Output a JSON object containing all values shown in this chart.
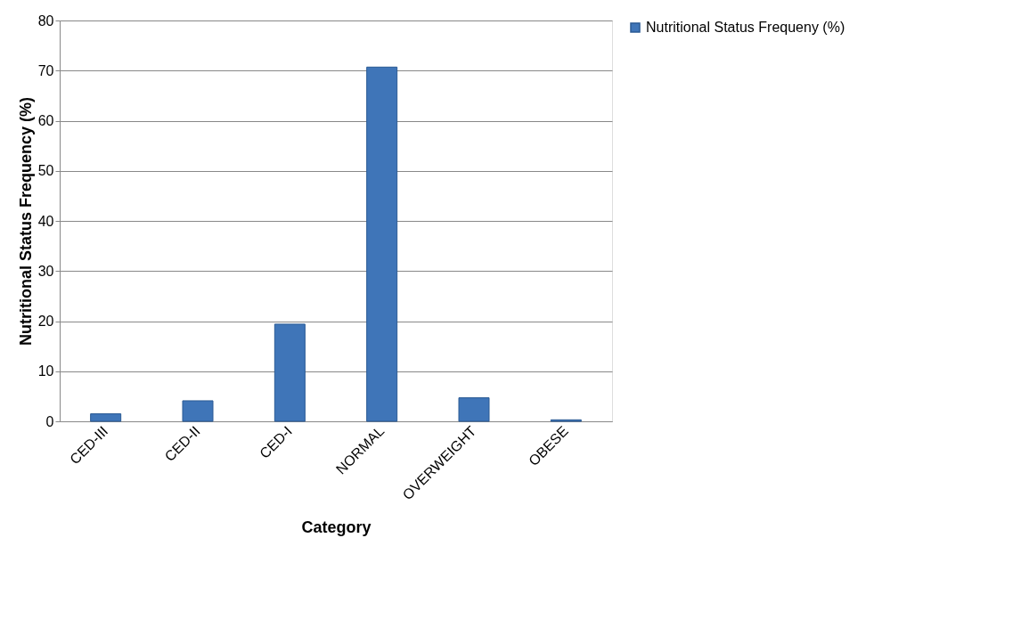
{
  "chart_data": {
    "type": "bar",
    "xlabel": "Category",
    "ylabel": "Nutritional Status Frequency (%)",
    "categories": [
      "CED-III",
      "CED-II",
      "CED-I",
      "NORMAL",
      "OVERWEIGHT",
      "OBESE"
    ],
    "series": [
      {
        "name": "Nutritional Status Frequeny (%)",
        "color": "#3f75b8",
        "values": [
          1.5,
          4.1,
          19.4,
          70.7,
          4.7,
          0.3
        ]
      }
    ],
    "ylim": [
      0,
      80
    ],
    "yticks": [
      0,
      10,
      20,
      30,
      40,
      50,
      60,
      70,
      80
    ],
    "grid": "y",
    "legend": "right"
  }
}
